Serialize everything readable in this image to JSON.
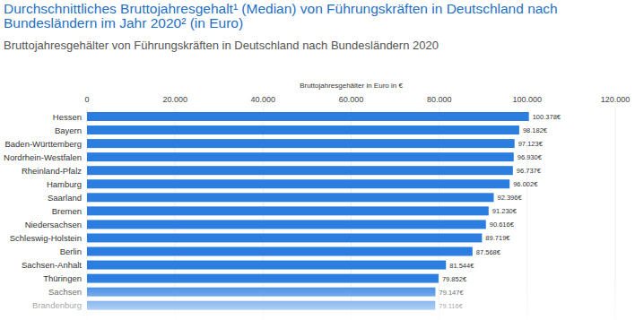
{
  "chart_data": {
    "type": "bar",
    "orientation": "horizontal",
    "title": "Durchschnittliches Bruttojahresgehalt¹ (Median) von Führungskräften in Deutschland nach Bundesländern im Jahr 2020² (in Euro)",
    "subtitle": "Bruttojahresgehälter von Führungskräften in Deutschland nach Bundesländern 2020",
    "x_label": "Bruttojahresgehälter in Euro in €",
    "categories": [
      "Hessen",
      "Bayern",
      "Baden-Württemberg",
      "Nordrhein-Westfalen",
      "Rheinland-Pfalz",
      "Hamburg",
      "Saarland",
      "Bremen",
      "Niedersachsen",
      "Schleswig-Holstein",
      "Berlin",
      "Sachsen-Anhalt",
      "Thüringen",
      "Sachsen",
      "Brandenburg"
    ],
    "values": [
      100378,
      98182,
      97123,
      96930,
      96737,
      96002,
      92396,
      91230,
      90616,
      89719,
      87568,
      81544,
      79852,
      79147,
      79116
    ],
    "value_labels": [
      "100.378€",
      "98.182€",
      "97.123€",
      "96.930€",
      "96.737€",
      "96.002€",
      "92.396€",
      "91.230€",
      "90.616€",
      "89.719€",
      "87.568€",
      "81.544€",
      "79.852€",
      "79.147€",
      "79.116€"
    ],
    "color": "#2b7de0",
    "xlim": [
      0,
      120000
    ],
    "xticks": [
      0,
      {
        "value": 20000,
        "label": "20.000"
      },
      {
        "value": 40000,
        "label": "40.000"
      },
      {
        "value": 60000,
        "label": "60.000"
      },
      {
        "value": 80000,
        "label": "80.000"
      },
      {
        "value": 100000,
        "label": "100.000"
      },
      {
        "value": 120000,
        "label": "120.000"
      }
    ],
    "grid": true,
    "data_labels": true
  }
}
